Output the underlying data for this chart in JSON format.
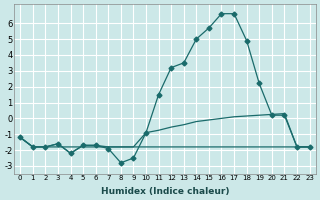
{
  "xlabel": "Humidex (Indice chaleur)",
  "x": [
    0,
    1,
    2,
    3,
    4,
    5,
    6,
    7,
    8,
    9,
    10,
    11,
    12,
    13,
    14,
    15,
    16,
    17,
    18,
    19,
    20,
    21,
    22,
    23
  ],
  "line1": [
    -1.2,
    -1.8,
    -1.8,
    -1.6,
    -2.2,
    -1.7,
    -1.7,
    -1.9,
    -2.8,
    -2.5,
    -0.9,
    1.5,
    3.2,
    3.5,
    5.0,
    5.7,
    6.6,
    6.6,
    4.9,
    2.2,
    0.2,
    0.2,
    -1.8,
    -1.8
  ],
  "line2_x": [
    0,
    1,
    2,
    3,
    4,
    5,
    6,
    7,
    8,
    9,
    10,
    11,
    12,
    13,
    14,
    15,
    16,
    17,
    18,
    19,
    20,
    21,
    22,
    23
  ],
  "line2_y": [
    -1.2,
    -1.8,
    -1.8,
    -1.6,
    -2.2,
    -1.7,
    -1.7,
    -1.8,
    -1.8,
    -1.8,
    -0.9,
    -0.75,
    -0.55,
    -0.4,
    -0.2,
    -0.1,
    0.0,
    0.1,
    0.15,
    0.2,
    0.25,
    0.3,
    -1.8,
    -1.8
  ],
  "line3_x": [
    0,
    1,
    2,
    3,
    4,
    5,
    6,
    7,
    8,
    9,
    10,
    11,
    12,
    13,
    14,
    15,
    16,
    17,
    18,
    19,
    20,
    21,
    22,
    23
  ],
  "line3_y": [
    -1.2,
    -1.8,
    -1.8,
    -1.8,
    -1.8,
    -1.8,
    -1.8,
    -1.8,
    -1.8,
    -1.8,
    -1.8,
    -1.8,
    -1.8,
    -1.8,
    -1.8,
    -1.8,
    -1.8,
    -1.8,
    -1.8,
    -1.8,
    -1.8,
    -1.8,
    -1.8,
    -1.8
  ],
  "bg_color": "#cce8e8",
  "grid_color": "#ffffff",
  "line_color": "#1a6b6b",
  "ylim": [
    -3.5,
    7.2
  ],
  "yticks": [
    -3,
    -2,
    -1,
    0,
    1,
    2,
    3,
    4,
    5,
    6
  ],
  "xlim": [
    -0.5,
    23.5
  ]
}
